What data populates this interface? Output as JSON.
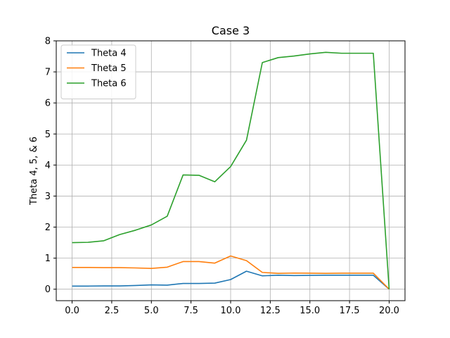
{
  "chart_data": {
    "type": "line",
    "title": "Case 3",
    "xlabel": "",
    "ylabel": "Theta 4, 5, & 6",
    "xlim": [
      -1,
      21
    ],
    "ylim": [
      -0.37,
      8.0
    ],
    "xticks": [
      0,
      2.5,
      5,
      7.5,
      10,
      12.5,
      15,
      17.5,
      20
    ],
    "xtick_labels": [
      "0.0",
      "2.5",
      "5.0",
      "7.5",
      "10.0",
      "12.5",
      "15.0",
      "17.5",
      "20.0"
    ],
    "yticks": [
      0,
      1,
      2,
      3,
      4,
      5,
      6,
      7,
      8
    ],
    "ytick_labels": [
      "0",
      "1",
      "2",
      "3",
      "4",
      "5",
      "6",
      "7",
      "8"
    ],
    "grid": true,
    "legend": "top-left",
    "x": [
      0,
      1,
      2,
      3,
      4,
      5,
      6,
      7,
      8,
      9,
      10,
      11,
      12,
      13,
      14,
      15,
      16,
      17,
      18,
      19,
      20
    ],
    "series": [
      {
        "name": "Theta 4",
        "color": "#1f77b4",
        "values": [
          0.1,
          0.1,
          0.105,
          0.105,
          0.12,
          0.14,
          0.13,
          0.185,
          0.185,
          0.195,
          0.31,
          0.58,
          0.43,
          0.45,
          0.44,
          0.445,
          0.45,
          0.45,
          0.45,
          0.45,
          0.0
        ]
      },
      {
        "name": "Theta 5",
        "color": "#ff7f0e",
        "values": [
          0.7,
          0.7,
          0.695,
          0.695,
          0.685,
          0.67,
          0.71,
          0.89,
          0.89,
          0.84,
          1.07,
          0.92,
          0.54,
          0.51,
          0.52,
          0.515,
          0.51,
          0.515,
          0.515,
          0.515,
          0.0
        ]
      },
      {
        "name": "Theta 6",
        "color": "#2ca02c",
        "values": [
          1.5,
          1.51,
          1.56,
          1.76,
          1.9,
          2.07,
          2.35,
          3.68,
          3.67,
          3.46,
          3.95,
          4.8,
          7.3,
          7.46,
          7.51,
          7.58,
          7.63,
          7.6,
          7.6,
          7.6,
          0.0
        ]
      }
    ]
  }
}
